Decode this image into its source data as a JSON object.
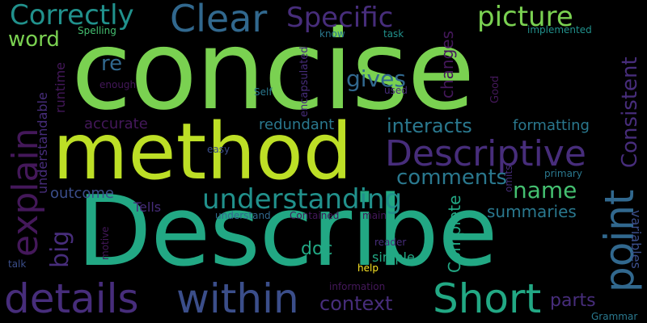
{
  "palette": {
    "background": "#000000",
    "dark_purple": "#44185a",
    "purple": "#472d7b",
    "indigo": "#3b4e8a",
    "blue": "#31688e",
    "teal_blue": "#2a788e",
    "teal": "#21918c",
    "green_teal": "#22a884",
    "green": "#44bf70",
    "light_green": "#7ad151",
    "lime": "#bddf26",
    "yellow": "#fde725"
  },
  "words": {
    "concise": "concise",
    "method": "method",
    "describe": "Describe",
    "details": "details",
    "within": "within",
    "short": "Short",
    "descriptive": "Descriptive",
    "understanding": "understanding",
    "explain": "explain",
    "point": "point",
    "clear": "Clear",
    "specific": "Specific",
    "correctly": "Correctly",
    "picture": "picture",
    "word": "word",
    "re": "re",
    "gives": "gives",
    "interacts": "interacts",
    "comments": "comments",
    "name": "name",
    "summaries": "summaries",
    "context": "context",
    "parts": "parts",
    "big": "big",
    "doc": "doc",
    "consistent": "Consistent",
    "accurate": "accurate",
    "redundant": "redundant",
    "formatting": "formatting",
    "outcome": "outcome",
    "tells": "Tells",
    "simple": "simple",
    "complete": "Complete",
    "variables": "variables",
    "runtime": "runtime",
    "understandable": "understandable",
    "changes": "changes",
    "spelling": "Spelling",
    "know": "know",
    "task": "task",
    "implemented": "implemented",
    "encapsulated": "encapsulated",
    "enough": "enough",
    "self": "Self",
    "used": "used",
    "good": "Good",
    "easy": "easy",
    "omits": "omits",
    "primary": "primary",
    "understand": "understand",
    "contained": "Contained",
    "main": "main",
    "reader": "reader",
    "help": "help",
    "talk": "talk",
    "motive": "motive",
    "information": "information",
    "grammar": "Grammar"
  }
}
